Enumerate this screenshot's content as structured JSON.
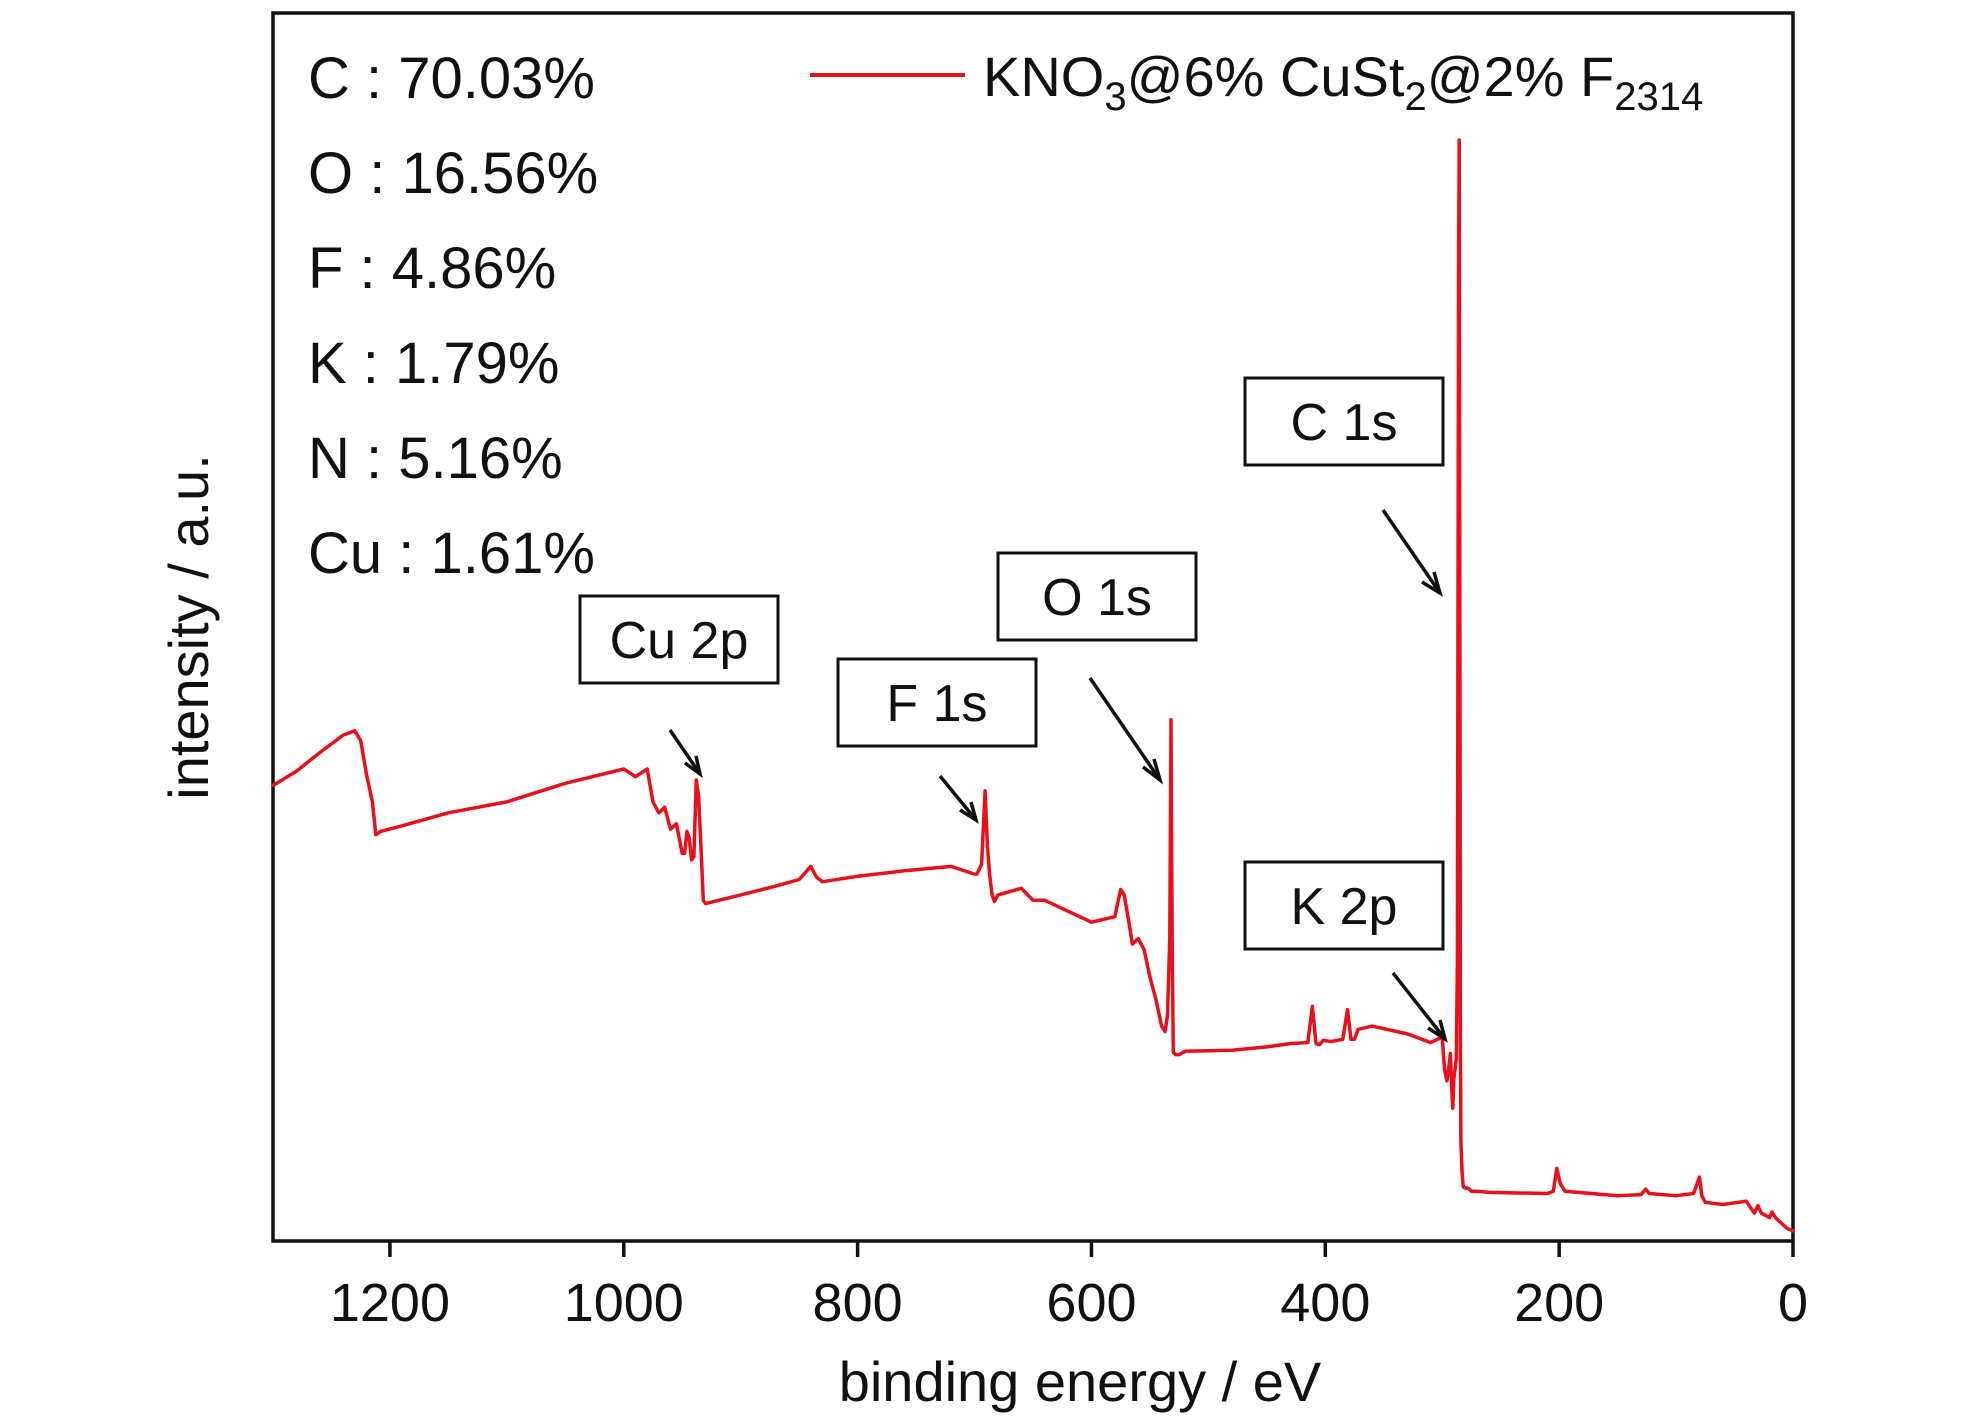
{
  "chart_data": {
    "type": "line",
    "title": "",
    "xlabel": "binding energy / eV",
    "ylabel": "intensity / a.u.",
    "xlim": [
      1300,
      0
    ],
    "x_reversed": true,
    "ylim": [
      0,
      100
    ],
    "y_ticks_shown": false,
    "x_ticks": [
      1200,
      1000,
      800,
      600,
      400,
      200,
      0
    ],
    "grid": false,
    "legend_position": "top-right",
    "series": [
      {
        "name_parts": [
          "KNO",
          "3",
          "@6% CuSt",
          "2",
          "@2% F",
          "2314"
        ],
        "color": "#e8101a",
        "x": [
          1300,
          1280,
          1260,
          1240,
          1230,
          1225,
          1220,
          1215,
          1212,
          1208,
          1190,
          1150,
          1100,
          1050,
          1000,
          990,
          980,
          975,
          970,
          965,
          960,
          955,
          950,
          948,
          946,
          944,
          942,
          940,
          938,
          936,
          934,
          932,
          930,
          900,
          870,
          850,
          840,
          835,
          830,
          800,
          760,
          740,
          720,
          700,
          698,
          694,
          691,
          689,
          687,
          685,
          683,
          680,
          660,
          650,
          640,
          600,
          580,
          575,
          572,
          568,
          565,
          560,
          555,
          550,
          545,
          540,
          537,
          535,
          533,
          532,
          531,
          530,
          528,
          525,
          520,
          480,
          450,
          430,
          415,
          411,
          408,
          405,
          402,
          395,
          385,
          381,
          378,
          375,
          372,
          360,
          330,
          310,
          300,
          298,
          296,
          294,
          293,
          292,
          291,
          290,
          288,
          287,
          286,
          285.5,
          285,
          284.5,
          284,
          283,
          282,
          280,
          278,
          275,
          270,
          260,
          210,
          205,
          202,
          199,
          195,
          150,
          130,
          126,
          123,
          100,
          85,
          80,
          78,
          75,
          60,
          40,
          33,
          30,
          27,
          20,
          18,
          15,
          10,
          5,
          0
        ],
        "y": [
          41.0,
          42.3,
          44.0,
          45.6,
          46.0,
          45.1,
          42.0,
          39.5,
          36.5,
          36.8,
          37.3,
          38.5,
          39.5,
          41.2,
          42.5,
          41.8,
          42.5,
          39.5,
          38.5,
          39.0,
          37.0,
          37.5,
          34.8,
          34.8,
          36.8,
          36.2,
          34.2,
          34.5,
          41.5,
          40.0,
          35.5,
          30.5,
          30.2,
          31.0,
          31.8,
          32.4,
          33.6,
          32.6,
          32.2,
          32.7,
          33.2,
          33.4,
          33.6,
          32.9,
          32.9,
          33.8,
          40.5,
          35.5,
          32.8,
          31.0,
          30.4,
          31.0,
          31.6,
          30.5,
          30.5,
          28.5,
          29.0,
          31.5,
          31.0,
          28.5,
          26.5,
          27.0,
          26.0,
          23.5,
          21.5,
          19.0,
          18.5,
          20.0,
          27.0,
          47.0,
          27.5,
          16.6,
          16.4,
          16.4,
          16.7,
          16.8,
          17.1,
          17.4,
          17.5,
          20.8,
          17.4,
          17.3,
          17.7,
          17.6,
          17.8,
          20.5,
          17.8,
          17.8,
          18.7,
          19.0,
          18.3,
          17.5,
          18.0,
          15.0,
          14.0,
          15.5,
          16.5,
          13.5,
          11.5,
          14.2,
          16.0,
          25.0,
          90.0,
          100.0,
          60.0,
          18.0,
          8.5,
          5.6,
          4.3,
          4.2,
          4.2,
          3.9,
          3.9,
          3.8,
          3.7,
          3.9,
          6.0,
          4.6,
          3.9,
          3.5,
          3.6,
          4.1,
          3.7,
          3.5,
          3.7,
          5.2,
          3.5,
          2.9,
          2.7,
          3.0,
          1.9,
          2.6,
          1.9,
          1.5,
          2.0,
          1.5,
          1.0,
          0.5,
          0.3
        ]
      }
    ],
    "annotations": [
      "C 1s",
      "O 1s",
      "F 1s",
      "Cu 2p",
      "K 2p"
    ]
  },
  "composition": [
    "C : 70.03%",
    "O : 16.56%",
    "F : 4.86%",
    "K : 1.79%",
    "N : 5.16%",
    "Cu : 1.61%"
  ]
}
